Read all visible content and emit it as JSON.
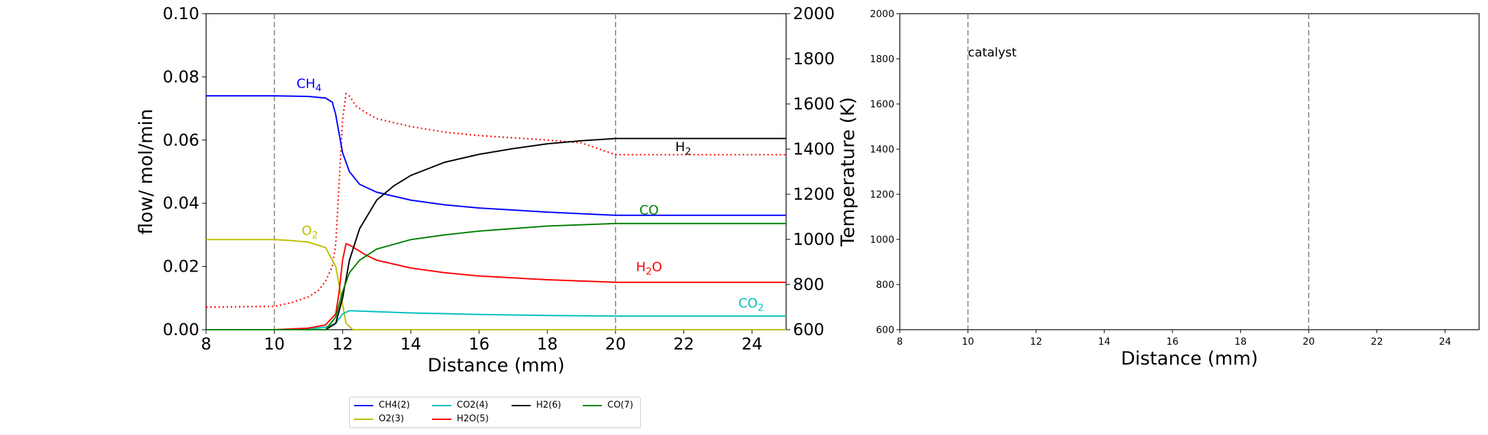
{
  "chart_data": [
    {
      "type": "line",
      "xlabel": "Distance (mm)",
      "ylabel": "flow/ mol/min",
      "y2label": "Temperature (K)",
      "xlim": [
        8,
        25
      ],
      "ylim": [
        0.0,
        0.1
      ],
      "y2lim": [
        600,
        2000
      ],
      "xticks": [
        "8",
        "10",
        "12",
        "14",
        "16",
        "18",
        "20",
        "22",
        "24"
      ],
      "yticks": [
        "0.00",
        "0.02",
        "0.04",
        "0.06",
        "0.08",
        "0.10"
      ],
      "y2ticks": [
        "600",
        "800",
        "1000",
        "1200",
        "1400",
        "1600",
        "1800",
        "2000"
      ],
      "vlines": [
        10,
        20
      ],
      "series": [
        {
          "name": "CH4(2)",
          "color": "#0000ff",
          "x": [
            8,
            10,
            11,
            11.5,
            11.7,
            11.8,
            11.9,
            12,
            12.2,
            12.5,
            13,
            14,
            15,
            16,
            18,
            20,
            22,
            25
          ],
          "y": [
            0.074,
            0.074,
            0.0738,
            0.0733,
            0.072,
            0.068,
            0.062,
            0.056,
            0.05,
            0.046,
            0.0435,
            0.041,
            0.0395,
            0.0385,
            0.0372,
            0.0362,
            0.0362,
            0.0362
          ]
        },
        {
          "name": "O2(3)",
          "color": "#bfbf00",
          "x": [
            8,
            10,
            10.5,
            11,
            11.5,
            11.8,
            12,
            12.1,
            12.3,
            12.5,
            25
          ],
          "y": [
            0.0285,
            0.0285,
            0.0282,
            0.0277,
            0.026,
            0.02,
            0.008,
            0.002,
            0.0,
            0.0,
            0.0
          ]
        },
        {
          "name": "CO2(4)",
          "color": "#00bfbf",
          "x": [
            8,
            10,
            11,
            11.5,
            11.8,
            12,
            12.2,
            13,
            14,
            16,
            18,
            20,
            25
          ],
          "y": [
            0.0,
            0.0,
            0.0002,
            0.0008,
            0.002,
            0.005,
            0.006,
            0.0057,
            0.0053,
            0.0048,
            0.0045,
            0.0043,
            0.0043
          ]
        },
        {
          "name": "H2O(5)",
          "color": "#ff0000",
          "x": [
            8,
            10,
            11,
            11.5,
            11.8,
            11.9,
            12,
            12.1,
            12.2,
            12.4,
            12.7,
            13,
            14,
            15,
            16,
            18,
            20,
            25
          ],
          "y": [
            0.0,
            0.0,
            0.0005,
            0.0015,
            0.005,
            0.012,
            0.022,
            0.0272,
            0.0268,
            0.0255,
            0.0235,
            0.022,
            0.0195,
            0.018,
            0.017,
            0.0158,
            0.015,
            0.015
          ]
        },
        {
          "name": "H2(6)",
          "color": "#000000",
          "x": [
            8,
            11.5,
            11.8,
            12,
            12.2,
            12.5,
            13,
            13.5,
            14,
            15,
            16,
            17,
            18,
            19,
            20,
            25
          ],
          "y": [
            0.0,
            0.0,
            0.002,
            0.01,
            0.022,
            0.032,
            0.041,
            0.0455,
            0.0488,
            0.053,
            0.0555,
            0.0573,
            0.0588,
            0.0598,
            0.0605,
            0.0605
          ]
        },
        {
          "name": "CO(7)",
          "color": "#008000",
          "x": [
            8,
            11.5,
            11.8,
            12,
            12.2,
            12.5,
            13,
            14,
            15,
            16,
            18,
            20,
            25
          ],
          "y": [
            0.0,
            0.0,
            0.004,
            0.012,
            0.018,
            0.022,
            0.0255,
            0.0285,
            0.03,
            0.0312,
            0.0328,
            0.0336,
            0.0336
          ]
        }
      ],
      "temperature": {
        "color": "#ff0000",
        "x": [
          8,
          10,
          10.5,
          11,
          11.3,
          11.5,
          11.7,
          11.8,
          11.9,
          12,
          12.1,
          12.2,
          12.4,
          12.7,
          13,
          14,
          15,
          16,
          17,
          18,
          19,
          20,
          22,
          25
        ],
        "y": [
          700,
          703,
          720,
          745,
          775,
          815,
          880,
          980,
          1250,
          1530,
          1645,
          1635,
          1590,
          1560,
          1535,
          1500,
          1475,
          1460,
          1450,
          1440,
          1428,
          1375,
          1375,
          1375
        ]
      },
      "annotations": [
        {
          "base": "CH",
          "sub": "4",
          "post": "",
          "color": "#0000ff",
          "x": 10.65,
          "y": 0.0765
        },
        {
          "base": "O",
          "sub": "2",
          "post": "",
          "color": "#bfbf00",
          "x": 10.8,
          "y": 0.03
        },
        {
          "base": "H",
          "sub": "2",
          "post": "",
          "color": "#000000",
          "x": 21.75,
          "y": 0.0565
        },
        {
          "base": "CO",
          "sub": "",
          "post": "",
          "color": "#008000",
          "x": 20.7,
          "y": 0.0365
        },
        {
          "base": "H",
          "sub": "2",
          "post": "O",
          "color": "#ff0000",
          "x": 20.6,
          "y": 0.0185
        },
        {
          "base": "CO",
          "sub": "2",
          "post": "",
          "color": "#00bfbf",
          "x": 23.6,
          "y": 0.007
        }
      ]
    },
    {
      "type": "line",
      "xlabel": "Distance (mm)",
      "ylabel": "",
      "xlim": [
        8,
        25
      ],
      "ylim": [
        600,
        2000
      ],
      "xticks": [
        "8",
        "10",
        "12",
        "14",
        "16",
        "18",
        "20",
        "22",
        "24"
      ],
      "yticks": [
        "600",
        "800",
        "1000",
        "1200",
        "1400",
        "1600",
        "1800",
        "2000"
      ],
      "vlines": [
        10,
        20
      ],
      "series": [],
      "annotations": [
        {
          "text": "catalyst",
          "x": 10,
          "y": 1810
        }
      ]
    }
  ],
  "legend": [
    {
      "label": "CH4(2)",
      "color": "#0000ff"
    },
    {
      "label": "CO2(4)",
      "color": "#00bfbf"
    },
    {
      "label": "H2(6)",
      "color": "#000000"
    },
    {
      "label": "CO(7)",
      "color": "#008000"
    },
    {
      "label": "O2(3)",
      "color": "#bfbf00"
    },
    {
      "label": "H2O(5)",
      "color": "#ff0000"
    }
  ]
}
